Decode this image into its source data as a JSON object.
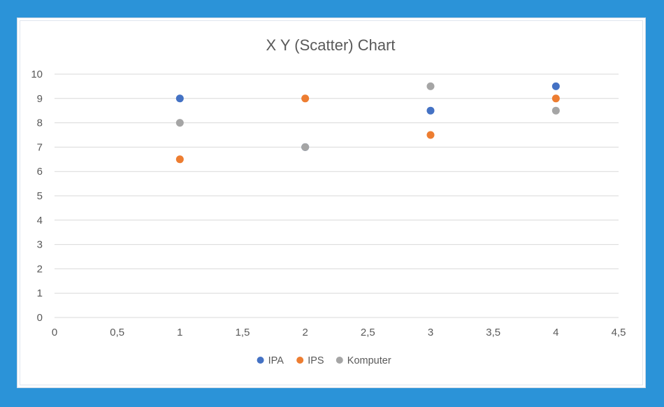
{
  "chart_data": {
    "type": "scatter",
    "title": "X Y (Scatter) Chart",
    "xlabel": "",
    "ylabel": "",
    "xlim": [
      0,
      4.5
    ],
    "ylim": [
      0,
      10
    ],
    "x_ticks": [
      "0",
      "0,5",
      "1",
      "1,5",
      "2",
      "2,5",
      "3",
      "3,5",
      "4",
      "4,5"
    ],
    "x_tick_values": [
      0,
      0.5,
      1,
      1.5,
      2,
      2.5,
      3,
      3.5,
      4,
      4.5
    ],
    "y_ticks": [
      "0",
      "1",
      "2",
      "3",
      "4",
      "5",
      "6",
      "7",
      "8",
      "9",
      "10"
    ],
    "y_tick_values": [
      0,
      1,
      2,
      3,
      4,
      5,
      6,
      7,
      8,
      9,
      10
    ],
    "grid": "horizontal",
    "legend_position": "bottom",
    "series": [
      {
        "name": "IPA",
        "color": "#4472c4",
        "points": [
          [
            1,
            9
          ],
          [
            2,
            7
          ],
          [
            3,
            8.5
          ],
          [
            4,
            9.5
          ]
        ]
      },
      {
        "name": "IPS",
        "color": "#ed7d31",
        "points": [
          [
            1,
            6.5
          ],
          [
            2,
            9
          ],
          [
            3,
            7.5
          ],
          [
            4,
            9
          ]
        ]
      },
      {
        "name": "Komputer",
        "color": "#a5a5a5",
        "points": [
          [
            1,
            8
          ],
          [
            2,
            7
          ],
          [
            3,
            9.5
          ],
          [
            4,
            8.5
          ]
        ]
      }
    ]
  }
}
